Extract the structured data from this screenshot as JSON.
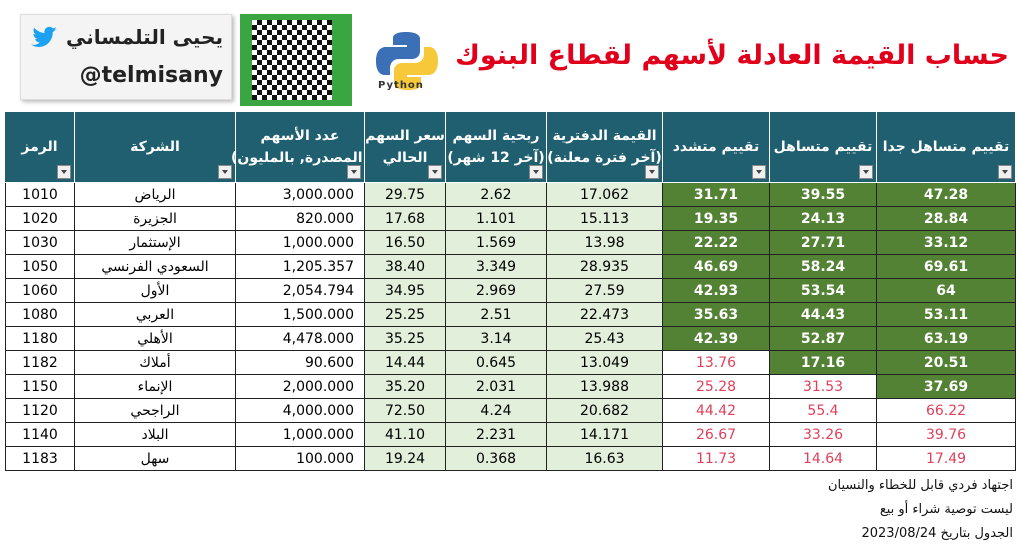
{
  "header": {
    "title": "حساب القيمة العادلة لأسهم لقطاع البنوك",
    "python_label": "Python",
    "author_name": "يحيى التلمساني",
    "author_handle": "@telmisany"
  },
  "table": {
    "columns": [
      [
        "الرمز"
      ],
      [
        "الشركة"
      ],
      [
        "عدد الأسهم",
        "(المصدرة, بالمليون)"
      ],
      [
        "سعر السهم",
        "الحالي"
      ],
      [
        "ربحية السهم",
        "(آخر 12 شهر)"
      ],
      [
        "القيمة  الدفترية",
        "(آخر فترة معلنة)"
      ],
      [
        "تقييم متشدد"
      ],
      [
        "تقييم متساهل"
      ],
      [
        "تقييم متساهل جدا"
      ]
    ],
    "rows": [
      [
        "1010",
        "الرياض",
        "3,000.000",
        "29.75",
        "2.62",
        "17.062",
        "31.71",
        "39.55",
        "47.28"
      ],
      [
        "1020",
        "الجزيرة",
        "820.000",
        "17.68",
        "1.101",
        "15.113",
        "19.35",
        "24.13",
        "28.84"
      ],
      [
        "1030",
        "الإستثمار",
        "1,000.000",
        "16.50",
        "1.569",
        "13.98",
        "22.22",
        "27.71",
        "33.12"
      ],
      [
        "1050",
        "السعودي الفرنسي",
        "1,205.357",
        "38.40",
        "3.349",
        "28.935",
        "46.69",
        "58.24",
        "69.61"
      ],
      [
        "1060",
        "الأول",
        "2,054.794",
        "34.95",
        "2.969",
        "27.59",
        "42.93",
        "53.54",
        "64"
      ],
      [
        "1080",
        "العربي",
        "1,500.000",
        "25.25",
        "2.51",
        "22.473",
        "35.63",
        "44.43",
        "53.11"
      ],
      [
        "1180",
        "الأهلي",
        "4,478.000",
        "35.25",
        "3.14",
        "25.43",
        "42.39",
        "52.87",
        "63.19"
      ],
      [
        "1182",
        "أملاك",
        "90.600",
        "14.44",
        "0.645",
        "13.049",
        "13.76",
        "17.16",
        "20.51"
      ],
      [
        "1150",
        "الإنماء",
        "2,000.000",
        "35.20",
        "2.031",
        "13.988",
        "25.28",
        "31.53",
        "37.69"
      ],
      [
        "1120",
        "الراجحي",
        "4,000.000",
        "72.50",
        "4.24",
        "20.682",
        "44.42",
        "55.4",
        "66.22"
      ],
      [
        "1140",
        "البلاد",
        "1,000.000",
        "41.10",
        "2.231",
        "14.171",
        "26.67",
        "33.26",
        "39.76"
      ],
      [
        "1183",
        "سهل",
        "100.000",
        "19.24",
        "0.368",
        "16.63",
        "11.73",
        "14.64",
        "17.49"
      ]
    ]
  },
  "notes": [
    "اجتهاد فردي قابل للخطاء والنسيان",
    "ليست توصية شراء أو بيع",
    "الجدول بتاريخ 2023/08/24"
  ]
}
